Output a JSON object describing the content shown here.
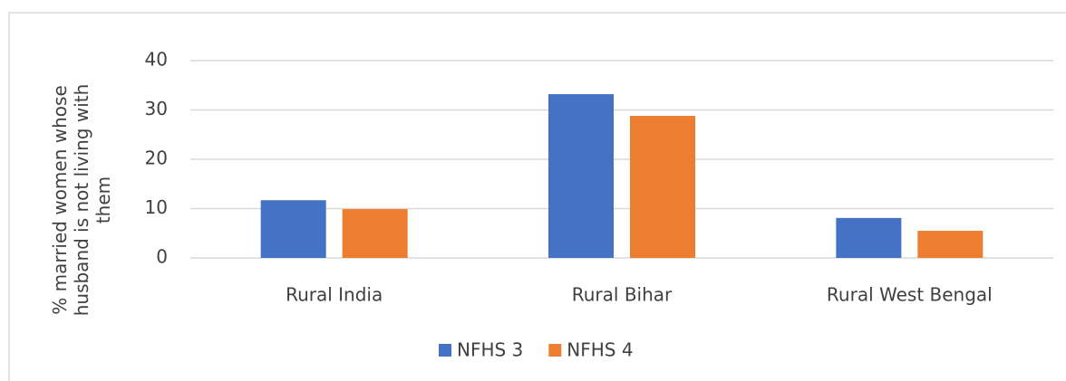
{
  "chart_data": {
    "type": "bar",
    "y_label": "% married women whose husband is not living with them",
    "categories": [
      "Rural India",
      "Rural Bihar",
      "Rural West Bengal"
    ],
    "series": [
      {
        "name": "NFHS 3",
        "color": "#4472c4",
        "values": [
          11.7,
          33.2,
          8.1
        ]
      },
      {
        "name": "NFHS 4",
        "color": "#ed7d31",
        "values": [
          9.9,
          28.8,
          5.5
        ]
      }
    ],
    "ylim": [
      0,
      40
    ],
    "yticks": [
      0,
      10,
      20,
      30,
      40
    ],
    "grid": true
  }
}
